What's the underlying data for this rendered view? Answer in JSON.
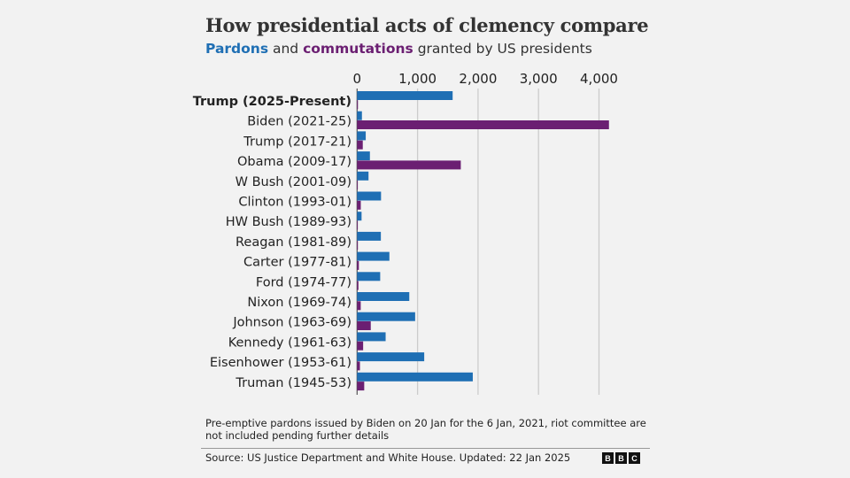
{
  "chart_data": {
    "type": "bar",
    "orientation": "horizontal",
    "title": "How presidential acts of clemency compare",
    "subtitle_parts": [
      "Pardons",
      " and ",
      "commutations",
      " granted by US presidents"
    ],
    "categories": [
      "Trump (2025-Present)",
      "Biden (2021-25)",
      "Trump (2017-21)",
      "Obama (2009-17)",
      "W Bush (2001-09)",
      "Clinton (1993-01)",
      "HW Bush (1989-93)",
      "Reagan (1981-89)",
      "Carter (1977-81)",
      "Ford (1974-77)",
      "Nixon (1969-74)",
      "Johnson (1963-69)",
      "Kennedy (1961-63)",
      "Eisenhower (1953-61)",
      "Truman (1945-53)"
    ],
    "bold_category": "Trump (2025-Present)",
    "series": [
      {
        "name": "Pardons",
        "color": "#1f6fb4",
        "values": [
          1580,
          80,
          143,
          212,
          189,
          396,
          74,
          393,
          534,
          382,
          863,
          960,
          472,
          1110,
          1913
        ]
      },
      {
        "name": "commutations",
        "color": "#6b1f72",
        "values": [
          14,
          4165,
          94,
          1715,
          11,
          61,
          3,
          13,
          29,
          22,
          60,
          226,
          100,
          47,
          118
        ]
      }
    ],
    "xlim": [
      0,
      4300
    ],
    "xticks": [
      0,
      1000,
      2000,
      3000,
      4000
    ],
    "xtick_labels": [
      "0",
      "1,000",
      "2,000",
      "3,000",
      "4,000"
    ],
    "grid": true,
    "axis_position": "top"
  },
  "footnote": "Pre-emptive pardons issued by Biden on 20 Jan for the 6 Jan, 2021, riot committee are not included pending further details",
  "source": "Source: US Justice Department and White House. Updated: 22 Jan 2025",
  "logo": [
    "B",
    "B",
    "C"
  ]
}
